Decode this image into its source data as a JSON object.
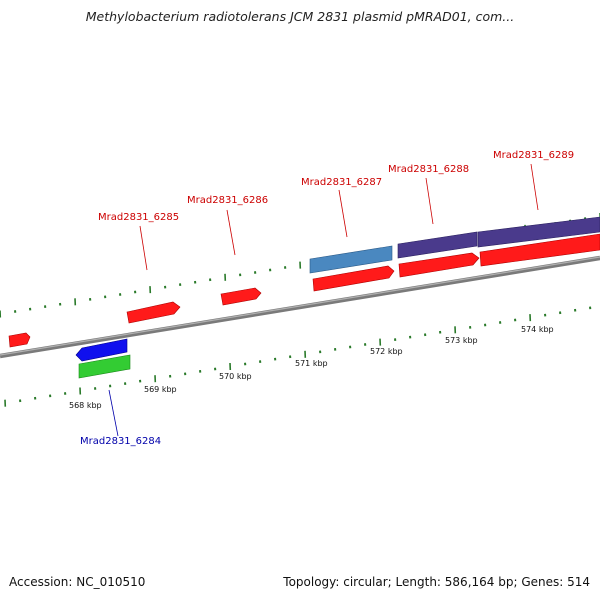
{
  "header": {
    "title": "Methylobacterium radiotolerans JCM 2831 plasmid pMRAD01, com..."
  },
  "footer": {
    "accession": "Accession: NC_010510",
    "summary": "Topology: circular; Length: 586,164 bp; Genes: 514"
  },
  "colors": {
    "cds_forward": "#ff1a1a",
    "cds_reverse": "#1010ee",
    "gene_green": "#33cc33",
    "feature_steelblue": "#4a88c0",
    "feature_purple": "#4a3a8c",
    "backbone": "#888888",
    "tick": "#2a7a2a",
    "label_red": "#cc0000",
    "label_blue": "#0000aa"
  },
  "axis": {
    "ticks": [
      {
        "label": "568 kbp"
      },
      {
        "label": "569 kbp"
      },
      {
        "label": "570 kbp"
      },
      {
        "label": "571 kbp"
      },
      {
        "label": "572 kbp"
      },
      {
        "label": "573 kbp"
      },
      {
        "label": "574 kbp"
      }
    ]
  },
  "genes": [
    {
      "label": "Mrad2831_6285"
    },
    {
      "label": "Mrad2831_6286"
    },
    {
      "label": "Mrad2831_6287"
    },
    {
      "label": "Mrad2831_6288"
    },
    {
      "label": "Mrad2831_6289"
    },
    {
      "label": "Mrad2831_6284"
    }
  ]
}
